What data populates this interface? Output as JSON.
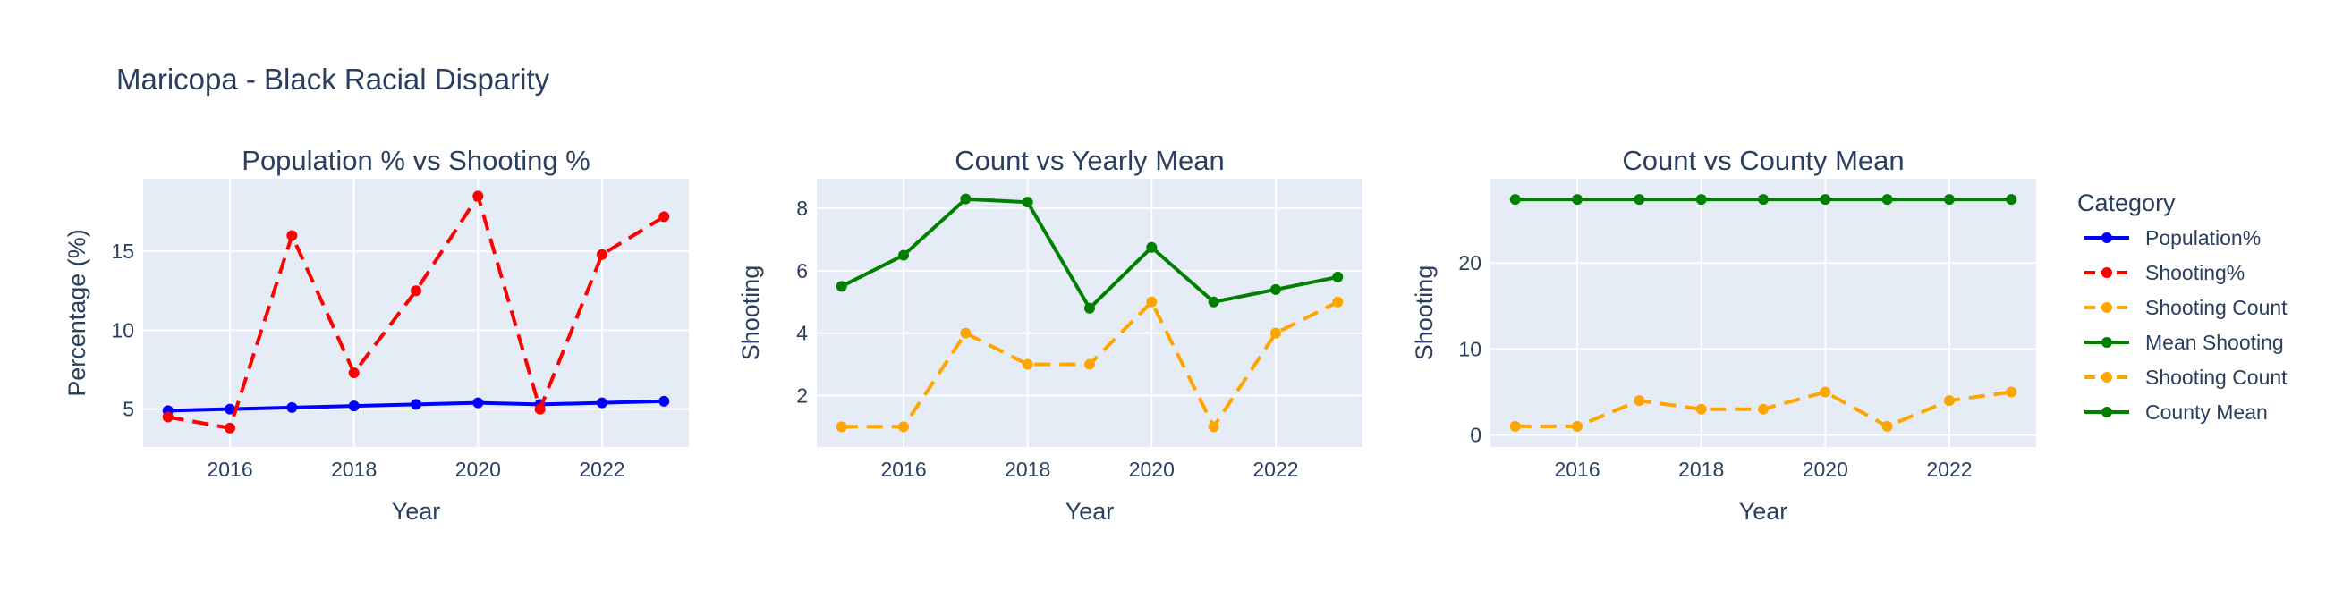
{
  "figure": {
    "title": "Maricopa - Black Racial Disparity",
    "background": "#ffffff",
    "plot_background": "#e5ecf6",
    "grid_color": "#ffffff",
    "text_color": "#2a3f5f"
  },
  "legend": {
    "title": "Category",
    "items": [
      {
        "label": "Population%",
        "color": "#0000ff",
        "dash": "solid"
      },
      {
        "label": "Shooting%",
        "color": "#ff0000",
        "dash": "dash"
      },
      {
        "label": "Shooting Count",
        "color": "#ffa500",
        "dash": "dash"
      },
      {
        "label": "Mean Shooting",
        "color": "#008000",
        "dash": "solid"
      },
      {
        "label": "Shooting Count",
        "color": "#ffa500",
        "dash": "dash"
      },
      {
        "label": "County Mean",
        "color": "#008000",
        "dash": "solid"
      }
    ]
  },
  "chart_data": [
    {
      "type": "line",
      "title": "Population % vs Shooting %",
      "xlabel": "Year",
      "ylabel": "Percentage (%)",
      "xlim": [
        2014.6,
        2023.4
      ],
      "ylim": [
        2.6,
        19.6
      ],
      "xticks": [
        2016,
        2018,
        2020,
        2022
      ],
      "yticks": [
        5,
        10,
        15
      ],
      "x": [
        2015,
        2016,
        2017,
        2018,
        2019,
        2020,
        2021,
        2022,
        2023
      ],
      "series": [
        {
          "name": "Population%",
          "color": "#0000ff",
          "dash": "solid",
          "values": [
            4.9,
            5.0,
            5.1,
            5.2,
            5.3,
            5.4,
            5.3,
            5.4,
            5.5
          ]
        },
        {
          "name": "Shooting%",
          "color": "#ff0000",
          "dash": "dash",
          "values": [
            4.5,
            3.8,
            16.0,
            7.3,
            12.5,
            18.5,
            5.0,
            14.8,
            17.2
          ]
        }
      ]
    },
    {
      "type": "line",
      "title": "Count vs Yearly Mean",
      "xlabel": "Year",
      "ylabel": "Shooting",
      "xlim": [
        2014.6,
        2023.4
      ],
      "ylim": [
        0.35,
        8.95
      ],
      "xticks": [
        2016,
        2018,
        2020,
        2022
      ],
      "yticks": [
        2,
        4,
        6,
        8
      ],
      "x": [
        2015,
        2016,
        2017,
        2018,
        2019,
        2020,
        2021,
        2022,
        2023
      ],
      "series": [
        {
          "name": "Shooting Count",
          "color": "#ffa500",
          "dash": "dash",
          "values": [
            1,
            1,
            4,
            3,
            3,
            5,
            1,
            4,
            5
          ]
        },
        {
          "name": "Mean Shooting",
          "color": "#008000",
          "dash": "solid",
          "values": [
            5.5,
            6.5,
            8.3,
            8.2,
            4.8,
            6.75,
            5.0,
            5.4,
            5.8
          ]
        }
      ]
    },
    {
      "type": "line",
      "title": "Count vs County Mean",
      "xlabel": "Year",
      "ylabel": "Shooting",
      "xlim": [
        2014.6,
        2023.4
      ],
      "ylim": [
        -1.4,
        29.8
      ],
      "xticks": [
        2016,
        2018,
        2020,
        2022
      ],
      "yticks": [
        0,
        10,
        20
      ],
      "x": [
        2015,
        2016,
        2017,
        2018,
        2019,
        2020,
        2021,
        2022,
        2023
      ],
      "series": [
        {
          "name": "Shooting Count",
          "color": "#ffa500",
          "dash": "dash",
          "values": [
            1,
            1,
            4,
            3,
            3,
            5,
            1,
            4,
            5
          ]
        },
        {
          "name": "County Mean",
          "color": "#008000",
          "dash": "solid",
          "values": [
            27.4,
            27.4,
            27.4,
            27.4,
            27.4,
            27.4,
            27.4,
            27.4,
            27.4
          ]
        }
      ]
    }
  ]
}
